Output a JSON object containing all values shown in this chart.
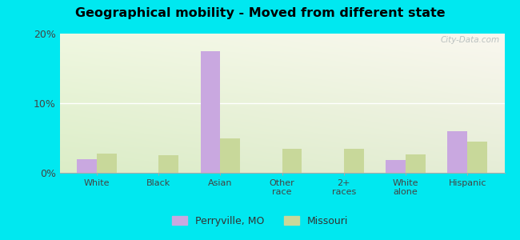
{
  "title": "Geographical mobility - Moved from different state",
  "categories": [
    "White",
    "Black",
    "Asian",
    "Other\nrace",
    "2+\nraces",
    "White\nalone",
    "Hispanic"
  ],
  "perryville_values": [
    2.0,
    0.0,
    17.5,
    0.0,
    0.0,
    1.8,
    6.0
  ],
  "missouri_values": [
    2.8,
    2.5,
    5.0,
    3.5,
    3.5,
    2.7,
    4.5
  ],
  "perryville_color": "#c9a8e0",
  "missouri_color": "#c8d89a",
  "ylim": [
    0,
    20
  ],
  "yticks": [
    0,
    10,
    20
  ],
  "ytick_labels": [
    "0%",
    "10%",
    "20%"
  ],
  "outer_bg": "#00e8f0",
  "bar_width": 0.32,
  "legend_labels": [
    "Perryville, MO",
    "Missouri"
  ],
  "watermark": "City-Data.com",
  "grad_top_left": "#eafaf0",
  "grad_bottom_right": "#d4edc0"
}
